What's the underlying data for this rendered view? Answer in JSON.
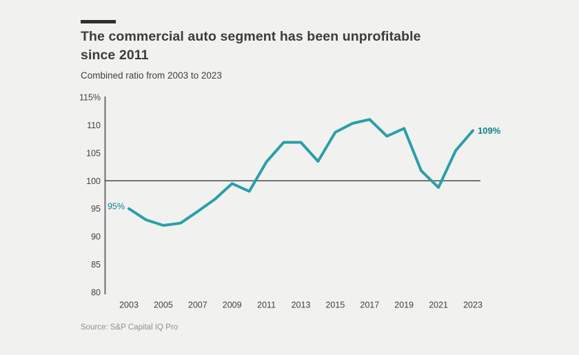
{
  "header": {
    "title_line1": "The commercial auto segment has been unprofitable",
    "title_line2": "since 2011",
    "subtitle": "Combined ratio from 2003 to 2023"
  },
  "source": "Source: S&P Capital IQ Pro",
  "colors": {
    "background": "#f1f1ef",
    "line": "#29a0a8",
    "point_label": "#0f808e",
    "axis": "#6e6f71",
    "reference_line": "#3a3a3a",
    "tick_text": "#414141",
    "title_text": "#3c3c3c",
    "accent_bar": "#2f2f2f"
  },
  "chart_data": {
    "type": "line",
    "title": "The commercial auto segment has been unprofitable since 2011",
    "subtitle": "Combined ratio from 2003 to 2023",
    "x": [
      2003,
      2004,
      2005,
      2006,
      2007,
      2008,
      2009,
      2010,
      2011,
      2012,
      2013,
      2014,
      2015,
      2016,
      2017,
      2018,
      2019,
      2020,
      2021,
      2022,
      2023
    ],
    "series": [
      {
        "name": "Combined ratio (%)",
        "values": [
          95.0,
          93.0,
          92.0,
          92.4,
          94.5,
          96.7,
          99.5,
          98.1,
          103.4,
          106.9,
          106.9,
          103.5,
          108.7,
          110.3,
          111.0,
          108.0,
          109.4,
          101.8,
          98.8,
          105.4,
          109.0
        ]
      }
    ],
    "y_axis": {
      "tick_labels": [
        "115%",
        "110",
        "105",
        "100",
        "95",
        "90",
        "85",
        "80"
      ],
      "tick_values": [
        115,
        110,
        105,
        100,
        95,
        90,
        85,
        80
      ],
      "range": [
        80,
        115
      ]
    },
    "x_axis": {
      "tick_labels": [
        "2003",
        "2005",
        "2007",
        "2009",
        "2011",
        "2013",
        "2015",
        "2017",
        "2019",
        "2021",
        "2023"
      ],
      "tick_values": [
        2003,
        2005,
        2007,
        2009,
        2011,
        2013,
        2015,
        2017,
        2019,
        2021,
        2023
      ]
    },
    "reference_line": 100,
    "annotations": {
      "first_point_label": "95%",
      "last_point_label": "109%"
    },
    "legend": "none",
    "grid": "off"
  }
}
